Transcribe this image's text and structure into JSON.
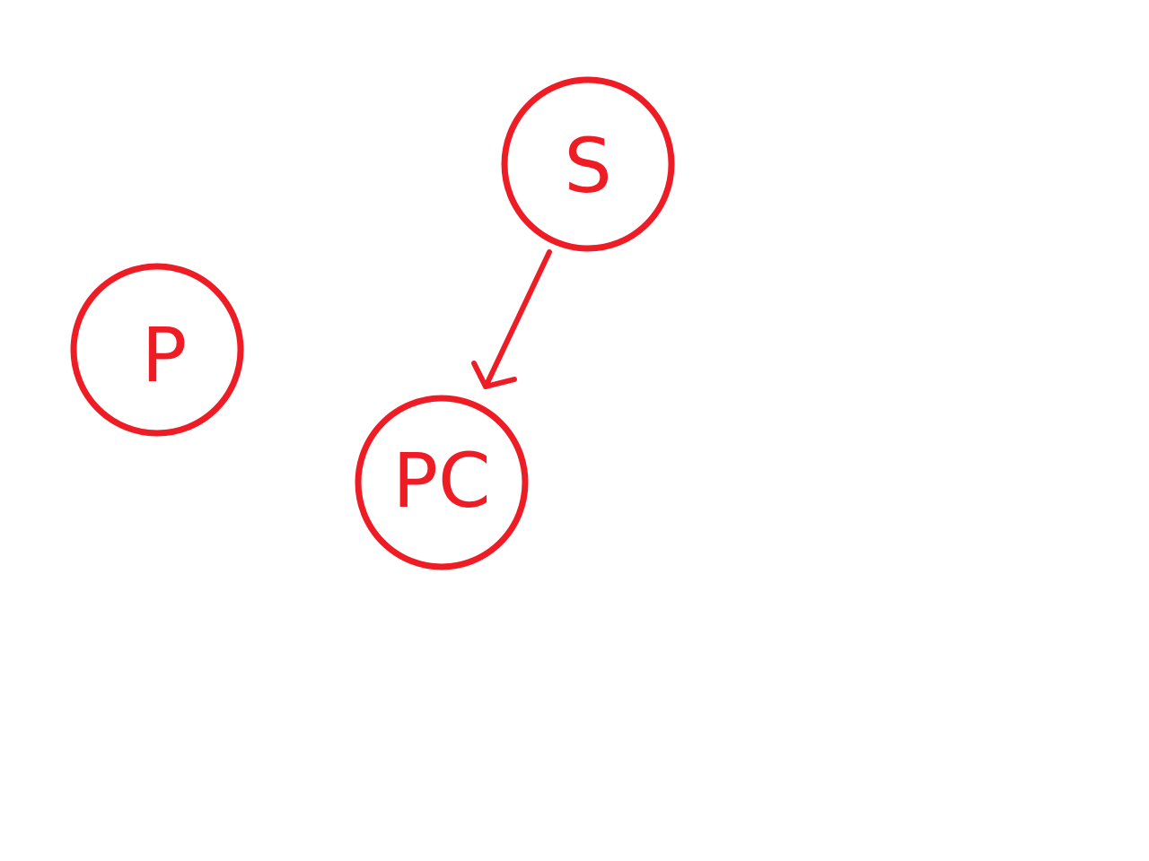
{
  "diagram": {
    "stroke_color": "#ee1c24",
    "background_color": "#ffffff",
    "nodes": [
      {
        "id": "s",
        "label": "S"
      },
      {
        "id": "p",
        "label": "P"
      },
      {
        "id": "pc",
        "label": "PC"
      }
    ],
    "edges": [
      {
        "from": "s",
        "to": "pc",
        "directed": true
      }
    ]
  }
}
